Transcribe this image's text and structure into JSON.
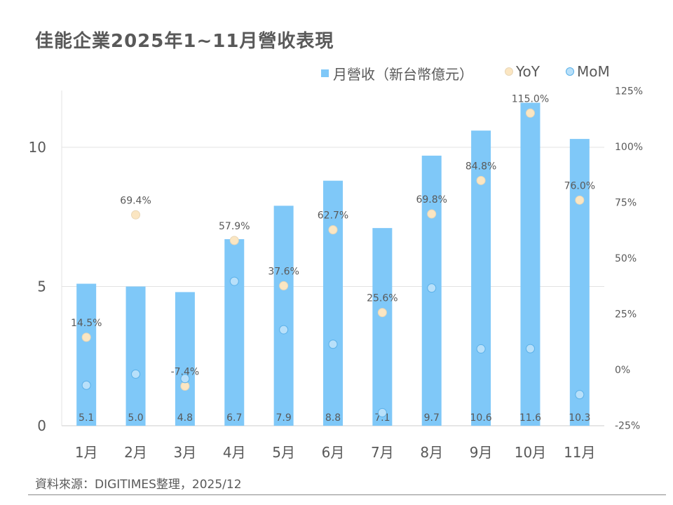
{
  "chart_data": {
    "type": "bar",
    "title": "佳能企業2025年1~11月營收表現",
    "categories": [
      "1月",
      "2月",
      "3月",
      "4月",
      "5月",
      "6月",
      "7月",
      "8月",
      "9月",
      "10月",
      "11月"
    ],
    "series": [
      {
        "name": "月營收（新台幣億元）",
        "type": "bar",
        "axis": "left",
        "color": "#7FC8F8",
        "values": [
          5.1,
          5.0,
          4.8,
          6.7,
          7.9,
          8.8,
          7.1,
          9.7,
          10.6,
          11.6,
          10.3
        ]
      },
      {
        "name": "YoY",
        "type": "scatter",
        "axis": "right",
        "unit": "%",
        "color": "#FBE6C2",
        "values": [
          14.5,
          69.4,
          -7.4,
          57.9,
          37.6,
          62.7,
          25.6,
          69.8,
          84.8,
          115.0,
          76.0
        ]
      },
      {
        "name": "MoM",
        "type": "scatter",
        "axis": "right",
        "unit": "%",
        "color": "#B8E0FA",
        "values": [
          -7,
          -2,
          -4,
          39.6,
          17.9,
          11.4,
          -19.3,
          36.6,
          9.3,
          9.4,
          -11.2
        ]
      }
    ],
    "left_axis": {
      "ylim": [
        0,
        12
      ],
      "ticks": [
        "0",
        "5",
        "10"
      ],
      "tick_values": [
        0,
        5,
        10
      ]
    },
    "right_axis": {
      "ylim": [
        -25,
        125
      ],
      "ticks": [
        "-25%",
        "0%",
        "25%",
        "50%",
        "75%",
        "100%",
        "125%"
      ],
      "tick_values": [
        -25,
        0,
        25,
        50,
        75,
        100,
        125
      ]
    },
    "grid": true,
    "legend": "top-right"
  },
  "source": "資料來源：DIGITIMES整理，2025/12"
}
